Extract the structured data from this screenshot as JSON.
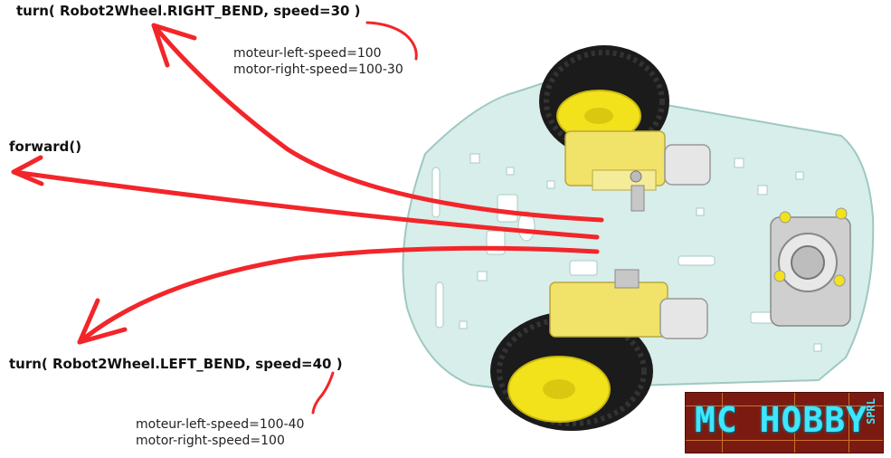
{
  "labels": {
    "right_turn_code": "turn( Robot2Wheel.RIGHT_BEND, speed=30 )",
    "right_turn_left_motor": "moteur-left-speed=100",
    "right_turn_right_motor": "motor-right-speed=100-30",
    "forward_code": "forward()",
    "left_turn_code": "turn( Robot2Wheel.LEFT_BEND, speed=40 )",
    "left_turn_left_motor": "moteur-left-speed=100-40",
    "left_turn_right_motor": "motor-right-speed=100"
  },
  "logo": {
    "text": "MC HOBBY",
    "suffix": "SPRL"
  },
  "colors": {
    "arrow": "#f2262a",
    "plate": "#d7eeea",
    "tire": "#1b1b1b",
    "hub": "#f2e21c",
    "motor": "#f1e26a",
    "logo_bg": "#7b1a10",
    "logo_text": "#3fe6ff"
  }
}
